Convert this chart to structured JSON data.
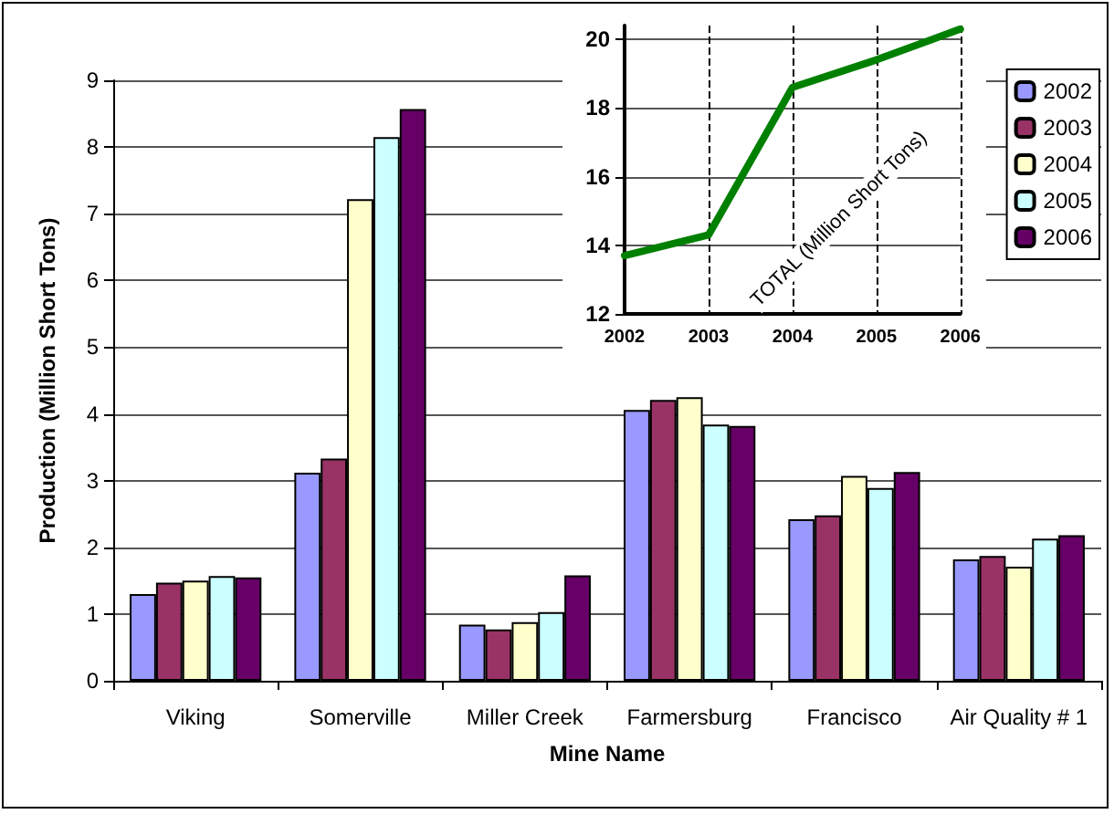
{
  "chart_data": [
    {
      "type": "bar",
      "xlabel": "Mine Name",
      "ylabel": "Production (Million Short Tons)",
      "categories": [
        "Viking",
        "Somerville",
        "Miller Creek",
        "Farmersburg",
        "Francisco",
        "Air Quality # 1"
      ],
      "series": [
        {
          "name": "2002",
          "color": "#9999ff",
          "values": [
            1.3,
            3.12,
            0.84,
            4.06,
            2.42,
            1.82
          ]
        },
        {
          "name": "2003",
          "color": "#993366",
          "values": [
            1.47,
            3.33,
            0.77,
            4.21,
            2.48,
            1.87
          ]
        },
        {
          "name": "2004",
          "color": "#ffffcc",
          "values": [
            1.5,
            7.22,
            0.88,
            4.25,
            3.07,
            1.71
          ]
        },
        {
          "name": "2005",
          "color": "#ccffff",
          "values": [
            1.57,
            8.15,
            1.03,
            3.84,
            2.89,
            2.13
          ]
        },
        {
          "name": "2006",
          "color": "#660066",
          "values": [
            1.55,
            8.57,
            1.58,
            3.82,
            3.13,
            2.18
          ]
        }
      ],
      "ylim": [
        0,
        9
      ],
      "yticks": [
        0,
        1,
        2,
        3,
        4,
        5,
        6,
        7,
        8,
        9
      ],
      "grid": "y",
      "legend": "top right"
    },
    {
      "type": "line",
      "categories": [
        "2002",
        "2003",
        "2004",
        "2005",
        "2006"
      ],
      "series": [
        {
          "color": "#008000",
          "values": [
            13.7,
            14.3,
            18.6,
            19.4,
            20.3
          ]
        }
      ],
      "ylim": [
        12,
        20.4
      ],
      "yticks": [
        12,
        14,
        16,
        18,
        20
      ],
      "grid": true,
      "marker": "none",
      "line_style": "solid",
      "annotations": [
        "TOTAL (Million Short Tons)"
      ]
    }
  ]
}
